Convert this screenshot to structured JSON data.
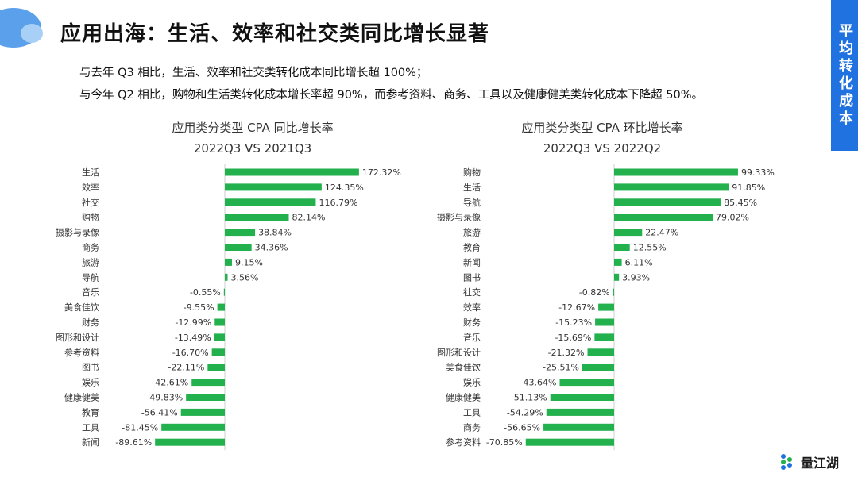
{
  "title": "应用出海：生活、效率和社交类同比增长显著",
  "side_tab": "平均转化成本",
  "descriptions": [
    "与去年 Q3 相比，生活、效率和社交类转化成本同比增长超 100%；",
    "与今年 Q2 相比，购物和生活类转化成本增长率超 90%，而参考资料、商务、工具以及健康健美类转化成本下降超 50%。"
  ],
  "logo_text": "量江湖",
  "chart_data": [
    {
      "type": "bar",
      "orientation": "horizontal",
      "title": "应用类分类型 CPA 同比增长率",
      "subtitle": "2022Q3 VS 2021Q3",
      "categories": [
        "生活",
        "效率",
        "社交",
        "购物",
        "摄影与录像",
        "商务",
        "旅游",
        "导航",
        "音乐",
        "美食佳饮",
        "财务",
        "图形和设计",
        "参考资料",
        "图书",
        "娱乐",
        "健康健美",
        "教育",
        "工具",
        "新闻"
      ],
      "values": [
        172.32,
        124.35,
        116.79,
        82.14,
        38.84,
        34.36,
        9.15,
        3.56,
        -0.55,
        -9.55,
        -12.99,
        -13.49,
        -16.7,
        -22.11,
        -42.61,
        -49.83,
        -56.41,
        -81.45,
        -89.61
      ],
      "labels": [
        "172.32%",
        "124.35%",
        "116.79%",
        "82.14%",
        "38.84%",
        "34.36%",
        "9.15%",
        "3.56%",
        "-0.55%",
        "-9.55%",
        "-12.99%",
        "-13.49%",
        "-16.70%",
        "-22.11%",
        "-42.61%",
        "-49.83%",
        "-56.41%",
        "-81.45%",
        "-89.61%"
      ],
      "color": "#22b14c"
    },
    {
      "type": "bar",
      "orientation": "horizontal",
      "title": "应用类分类型 CPA 环比增长率",
      "subtitle": "2022Q3 VS 2022Q2",
      "categories": [
        "购物",
        "生活",
        "导航",
        "摄影与录像",
        "旅游",
        "教育",
        "新闻",
        "图书",
        "社交",
        "效率",
        "财务",
        "音乐",
        "图形和设计",
        "美食佳饮",
        "娱乐",
        "健康健美",
        "工具",
        "商务",
        "参考资料"
      ],
      "values": [
        99.33,
        91.85,
        85.45,
        79.02,
        22.47,
        12.55,
        6.11,
        3.93,
        -0.82,
        -12.67,
        -15.23,
        -15.69,
        -21.32,
        -25.51,
        -43.64,
        -51.13,
        -54.29,
        -56.65,
        -70.85
      ],
      "labels": [
        "99.33%",
        "91.85%",
        "85.45%",
        "79.02%",
        "22.47%",
        "12.55%",
        "6.11%",
        "3.93%",
        "-0.82%",
        "-12.67%",
        "-15.23%",
        "-15.69%",
        "-21.32%",
        "-25.51%",
        "-43.64%",
        "-51.13%",
        "-54.29%",
        "-56.65%",
        "-70.85%"
      ],
      "color": "#22b14c"
    }
  ]
}
